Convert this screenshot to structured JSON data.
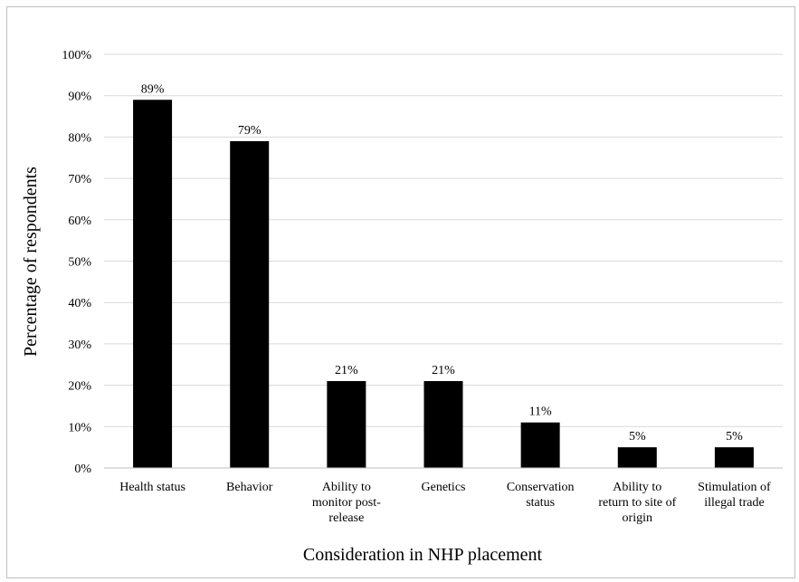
{
  "chart_data": {
    "type": "bar",
    "title": "",
    "xlabel": "Consideration in NHP placement",
    "ylabel": "Percentage of respondents",
    "categories": [
      [
        "Health status"
      ],
      [
        "Behavior"
      ],
      [
        "Ability to",
        "monitor post-",
        "release"
      ],
      [
        "Genetics"
      ],
      [
        "Conservation",
        "status"
      ],
      [
        "Ability to",
        "return to site of",
        "origin"
      ],
      [
        "Stimulation of",
        "illegal trade"
      ]
    ],
    "values": [
      89,
      79,
      21,
      21,
      11,
      5,
      5
    ],
    "data_labels": [
      "89%",
      "79%",
      "21%",
      "21%",
      "11%",
      "5%",
      "5%"
    ],
    "yticks": [
      0,
      10,
      20,
      30,
      40,
      50,
      60,
      70,
      80,
      90,
      100
    ],
    "ytick_labels": [
      "0%",
      "10%",
      "20%",
      "30%",
      "40%",
      "50%",
      "60%",
      "70%",
      "80%",
      "90%",
      "100%"
    ],
    "ylim": [
      0,
      100
    ],
    "grid": true,
    "legend": "none",
    "colors": {
      "bar": "#000000",
      "grid": "#d9d9d9",
      "axis": "#bfbfbf"
    }
  }
}
